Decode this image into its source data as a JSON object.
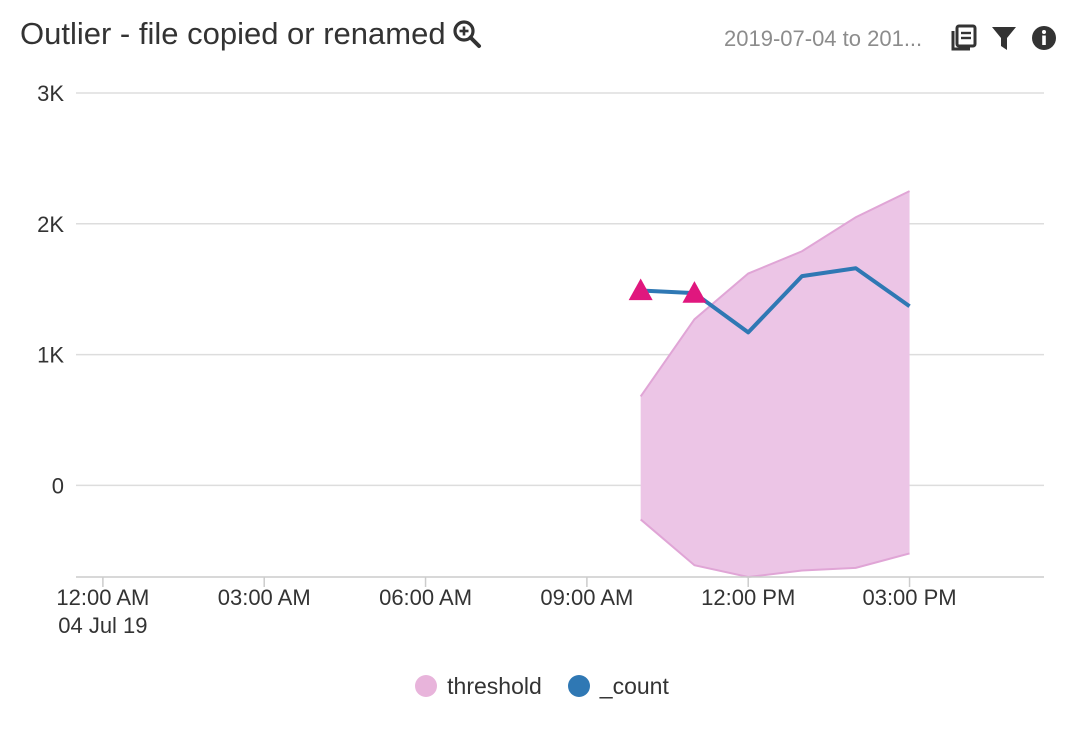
{
  "header": {
    "title": "Outlier - file copied or renamed",
    "time_range": "2019-07-04 to 201..."
  },
  "icons": {
    "zoom": "zoom-in-icon",
    "export": "export-icon",
    "filter": "filter-icon",
    "info": "info-icon"
  },
  "colors": {
    "threshold_fill": "#ecc5e6",
    "threshold_stroke": "#e0a5d6",
    "count_line": "#2f78b4",
    "outlier_marker": "#e0177e",
    "legend_threshold": "#e8b4db",
    "legend_count": "#2f78b4"
  },
  "chart_data": {
    "type": "line",
    "title": "Outlier - file copied or renamed",
    "x_tick_labels": [
      "12:00 AM",
      "03:00 AM",
      "06:00 AM",
      "09:00 AM",
      "12:00 PM",
      "03:00 PM"
    ],
    "x_tick_hours": [
      0,
      3,
      6,
      9,
      12,
      15
    ],
    "x_subtitle": "04 Jul 19",
    "y_tick_labels": [
      "3K",
      "2K",
      "1K",
      "0"
    ],
    "y_ticks": [
      3000,
      2000,
      1000,
      0
    ],
    "ylim": [
      -700,
      3000
    ],
    "xlim_hours": [
      -0.5,
      17.5
    ],
    "grid": true,
    "legend_position": "bottom",
    "series": [
      {
        "name": "threshold",
        "kind": "band",
        "x_hours": [
          10,
          11,
          12,
          13,
          14,
          15
        ],
        "upper": [
          680,
          1270,
          1620,
          1790,
          2050,
          2250
        ],
        "lower": [
          -260,
          -610,
          -700,
          -650,
          -630,
          -520
        ]
      },
      {
        "name": "_count",
        "kind": "line",
        "x_hours": [
          10,
          11,
          12,
          13,
          14,
          15
        ],
        "values": [
          1490,
          1470,
          1170,
          1600,
          1660,
          1370
        ],
        "outliers_hours": [
          10,
          11
        ]
      }
    ]
  }
}
